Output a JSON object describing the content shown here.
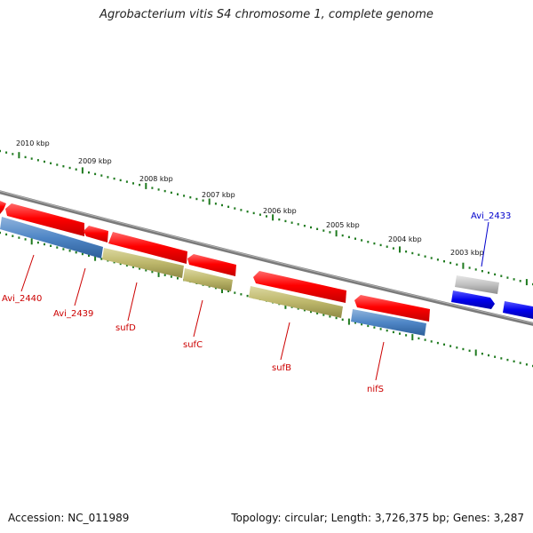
{
  "title": "Agrobacterium vitis S4 chromosome 1, complete genome",
  "footer": {
    "accession": "Accession: NC_011989",
    "summary": "Topology: circular; Length: 3,726,375 bp; Genes: 3,287"
  },
  "colors": {
    "backbone": "#7a7a7a",
    "tick": "#1f7a1f",
    "red_gene": "#ff0000",
    "blue_gene": "#4f86c6",
    "olive_gene": "#bdb76b",
    "gray_gene": "#c0c0c0",
    "dark_blue_gene": "#0000ee",
    "red_label": "#cc0000",
    "blue_label": "#0000cc"
  },
  "kbp_ticks": [
    "2010 kbp",
    "2009 kbp",
    "2008 kbp",
    "2007 kbp",
    "2006 kbp",
    "2005 kbp",
    "2004 kbp",
    "2003 kbp"
  ],
  "gene_labels": [
    {
      "name": "Avi_2440",
      "color": "red"
    },
    {
      "name": "Avi_2439",
      "color": "red"
    },
    {
      "name": "sufD",
      "color": "red"
    },
    {
      "name": "sufC",
      "color": "red"
    },
    {
      "name": "sufB",
      "color": "red"
    },
    {
      "name": "nifS",
      "color": "red"
    },
    {
      "name": "Avi_2433",
      "color": "blue"
    }
  ]
}
